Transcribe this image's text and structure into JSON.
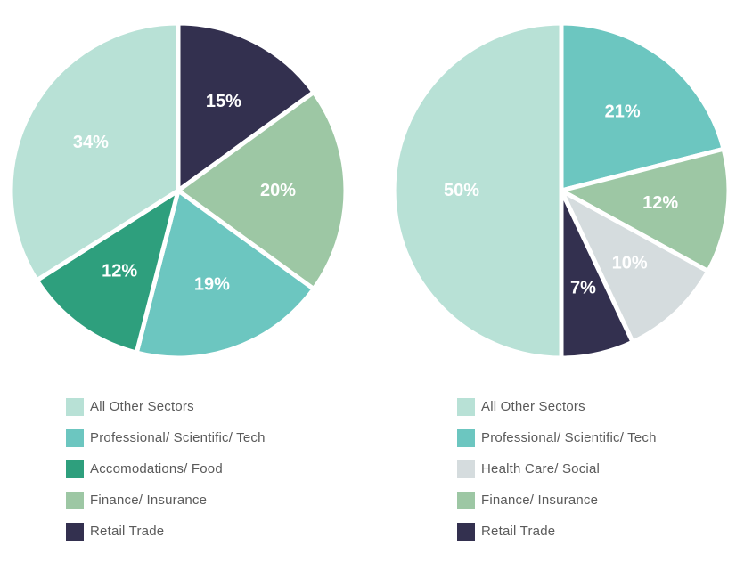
{
  "chart_data": [
    {
      "type": "pie",
      "slices": [
        {
          "label": "Retail Trade",
          "value": 15,
          "display": "15%",
          "color": "#33304f"
        },
        {
          "label": "Finance/ Insurance",
          "value": 20,
          "display": "20%",
          "color": "#9dc7a4"
        },
        {
          "label": "Professional/ Scientific/ Tech",
          "value": 19,
          "display": "19%",
          "color": "#6cc6c0"
        },
        {
          "label": "Accomodations/ Food",
          "value": 12,
          "display": "12%",
          "color": "#2e9f7d"
        },
        {
          "label": "All Other Sectors",
          "value": 34,
          "display": "34%",
          "color": "#b8e1d6"
        }
      ],
      "legend": [
        {
          "label": "All Other Sectors",
          "color": "#b8e1d6"
        },
        {
          "label": "Professional/ Scientific/ Tech",
          "color": "#6cc6c0"
        },
        {
          "label": "Accomodations/ Food",
          "color": "#2e9f7d"
        },
        {
          "label": "Finance/ Insurance",
          "color": "#9dc7a4"
        },
        {
          "label": "Retail Trade",
          "color": "#33304f"
        }
      ],
      "legend_position": "bottom"
    },
    {
      "type": "pie",
      "slices": [
        {
          "label": "Professional/ Scientific/ Tech",
          "value": 21,
          "display": "21%",
          "color": "#6cc6c0"
        },
        {
          "label": "Finance/ Insurance",
          "value": 12,
          "display": "12%",
          "color": "#9dc7a4"
        },
        {
          "label": "Health Care/ Social",
          "value": 10,
          "display": "10%",
          "color": "#d5dcde"
        },
        {
          "label": "Retail Trade",
          "value": 7,
          "display": "7%",
          "color": "#33304f"
        },
        {
          "label": "All Other Sectors",
          "value": 50,
          "display": "50%",
          "color": "#b8e1d6"
        }
      ],
      "legend": [
        {
          "label": "All Other Sectors",
          "color": "#b8e1d6"
        },
        {
          "label": "Professional/ Scientific/ Tech",
          "color": "#6cc6c0"
        },
        {
          "label": "Health Care/ Social",
          "color": "#d5dcde"
        },
        {
          "label": "Finance/ Insurance",
          "color": "#9dc7a4"
        },
        {
          "label": "Retail Trade",
          "color": "#33304f"
        }
      ],
      "legend_position": "bottom"
    }
  ]
}
